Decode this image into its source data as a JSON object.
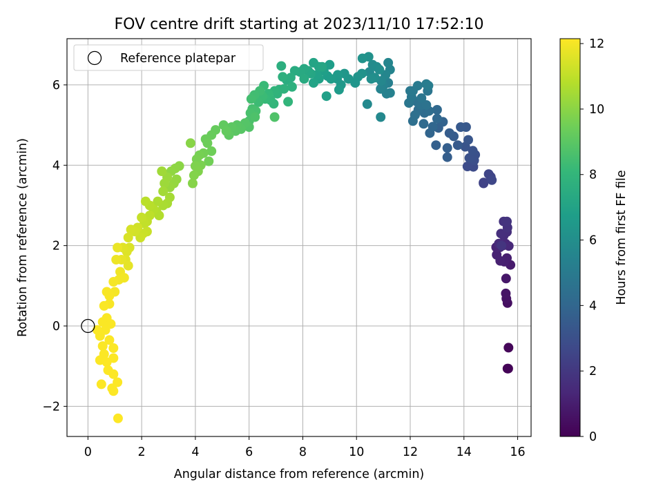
{
  "chart_data": {
    "type": "scatter",
    "title": "FOV centre drift starting at 2023/11/10 17:52:10",
    "xlabel": "Angular distance from reference (arcmin)",
    "ylabel": "Rotation from reference (arcmin)",
    "xlim": [
      -0.78,
      16.5
    ],
    "ylim": [
      -2.75,
      7.15
    ],
    "xticks": [
      0,
      2,
      4,
      6,
      8,
      10,
      12,
      14,
      16
    ],
    "yticks": [
      -2,
      0,
      2,
      4,
      6
    ],
    "xtick_labels": [
      "0",
      "2",
      "4",
      "6",
      "8",
      "10",
      "12",
      "14",
      "16"
    ],
    "ytick_labels": [
      "−2",
      "0",
      "2",
      "4",
      "6"
    ],
    "grid": true,
    "legend": {
      "position": "top-left",
      "entries": [
        {
          "label": "Reference platepar",
          "marker": "open-circle",
          "x": 0,
          "y": 0
        }
      ]
    },
    "colorbar": {
      "label": "Hours from first FF file",
      "colormap": "viridis",
      "range": [
        0,
        12.15
      ],
      "ticks": [
        0,
        2,
        4,
        6,
        8,
        10,
        12
      ],
      "tick_labels": [
        "0",
        "2",
        "4",
        "6",
        "8",
        "10",
        "12"
      ]
    },
    "series": [
      {
        "columns": [
          "x",
          "y",
          "hours"
        ],
        "points": [
          [
            15.62,
            -1.06,
            0.05
          ],
          [
            15.65,
            -1.06,
            0.1
          ],
          [
            15.66,
            -0.54,
            0.2
          ],
          [
            15.62,
            0.57,
            0.5
          ],
          [
            15.58,
            0.68,
            0.6
          ],
          [
            15.56,
            0.81,
            0.65
          ],
          [
            15.57,
            1.18,
            0.75
          ],
          [
            15.73,
            1.52,
            0.9
          ],
          [
            15.6,
            1.69,
            1.0
          ],
          [
            15.5,
            1.6,
            1.05
          ],
          [
            15.35,
            1.62,
            1.1
          ],
          [
            15.22,
            1.77,
            1.15
          ],
          [
            15.2,
            1.96,
            1.2
          ],
          [
            15.34,
            1.96,
            1.25
          ],
          [
            15.45,
            2.0,
            1.3
          ],
          [
            15.55,
            2.05,
            1.35
          ],
          [
            15.67,
            1.99,
            1.4
          ],
          [
            15.3,
            2.05,
            1.5
          ],
          [
            15.48,
            2.25,
            1.55
          ],
          [
            15.6,
            2.34,
            1.6
          ],
          [
            15.38,
            2.3,
            1.65
          ],
          [
            15.62,
            2.45,
            1.75
          ],
          [
            15.48,
            2.6,
            1.8
          ],
          [
            15.6,
            2.6,
            1.85
          ],
          [
            15.4,
            2.0,
            1.9
          ],
          [
            14.73,
            3.55,
            2.4
          ],
          [
            14.73,
            3.57,
            2.45
          ],
          [
            15.0,
            3.71,
            2.5
          ],
          [
            14.92,
            3.78,
            2.55
          ],
          [
            15.04,
            3.63,
            2.6
          ],
          [
            14.35,
            3.96,
            2.8
          ],
          [
            14.13,
            3.97,
            2.85
          ],
          [
            14.38,
            4.12,
            2.95
          ],
          [
            14.42,
            4.26,
            3.0
          ],
          [
            14.2,
            4.18,
            3.05
          ],
          [
            14.33,
            4.36,
            3.1
          ],
          [
            14.05,
            4.46,
            3.2
          ],
          [
            14.16,
            4.63,
            3.25
          ],
          [
            14.08,
            4.95,
            3.35
          ],
          [
            13.88,
            4.95,
            3.4
          ],
          [
            13.77,
            4.5,
            3.45
          ],
          [
            13.62,
            4.72,
            3.5
          ],
          [
            13.46,
            4.8,
            3.55
          ],
          [
            13.38,
            4.2,
            3.6
          ],
          [
            13.38,
            4.43,
            3.65
          ],
          [
            12.96,
            4.5,
            3.7
          ],
          [
            13.05,
            4.93,
            3.75
          ],
          [
            13.22,
            5.08,
            3.85
          ],
          [
            12.73,
            4.8,
            3.9
          ],
          [
            12.84,
            4.96,
            4.0
          ],
          [
            13.0,
            5.16,
            4.05
          ],
          [
            13.0,
            5.38,
            4.1
          ],
          [
            12.5,
            5.03,
            4.15
          ],
          [
            12.53,
            5.3,
            4.2
          ],
          [
            12.7,
            5.35,
            4.3
          ],
          [
            12.3,
            5.38,
            4.35
          ],
          [
            12.1,
            5.1,
            4.4
          ],
          [
            12.18,
            5.25,
            4.45
          ],
          [
            12.25,
            5.58,
            4.5
          ],
          [
            12.4,
            5.5,
            4.55
          ],
          [
            12.6,
            5.5,
            4.6
          ],
          [
            12.65,
            5.85,
            4.7
          ],
          [
            12.42,
            5.67,
            4.75
          ],
          [
            11.95,
            5.55,
            4.8
          ],
          [
            12.05,
            5.7,
            4.85
          ],
          [
            12.0,
            5.85,
            4.9
          ],
          [
            12.1,
            5.85,
            4.95
          ],
          [
            12.28,
            5.98,
            5.0
          ],
          [
            12.6,
            6.02,
            5.1
          ],
          [
            12.68,
            5.98,
            5.15
          ],
          [
            11.18,
            6.05,
            5.25
          ],
          [
            11.12,
            5.78,
            5.3
          ],
          [
            11.25,
            5.8,
            5.35
          ],
          [
            11.0,
            5.98,
            5.4
          ],
          [
            10.9,
            5.9,
            5.45
          ],
          [
            11.25,
            6.38,
            5.5
          ],
          [
            11.18,
            6.55,
            5.55
          ],
          [
            11.08,
            6.25,
            5.6
          ],
          [
            10.92,
            6.1,
            5.65
          ],
          [
            10.9,
            5.2,
            5.7
          ],
          [
            10.4,
            5.52,
            5.75
          ],
          [
            10.48,
            6.32,
            5.8
          ],
          [
            10.6,
            6.5,
            5.85
          ],
          [
            10.75,
            6.45,
            5.9
          ],
          [
            10.85,
            6.38,
            5.95
          ],
          [
            10.68,
            6.18,
            6.0
          ],
          [
            10.55,
            6.15,
            6.05
          ],
          [
            10.45,
            6.7,
            6.1
          ],
          [
            10.2,
            6.28,
            6.15
          ],
          [
            10.22,
            6.66,
            6.2
          ],
          [
            10.05,
            6.2,
            6.25
          ],
          [
            9.95,
            6.05,
            6.3
          ],
          [
            9.7,
            6.15,
            6.35
          ],
          [
            9.55,
            6.28,
            6.4
          ],
          [
            9.42,
            6.0,
            6.45
          ],
          [
            9.28,
            6.15,
            6.5
          ],
          [
            9.3,
            6.25,
            6.55
          ],
          [
            9.35,
            5.88,
            6.6
          ],
          [
            9.05,
            6.15,
            6.65
          ],
          [
            8.92,
            6.22,
            6.7
          ],
          [
            9.0,
            6.5,
            6.75
          ],
          [
            8.78,
            6.35,
            6.8
          ],
          [
            8.88,
            5.72,
            6.85
          ],
          [
            8.6,
            6.15,
            6.9
          ],
          [
            8.52,
            6.25,
            6.95
          ],
          [
            8.4,
            6.05,
            7.0
          ],
          [
            8.4,
            6.55,
            7.05
          ],
          [
            8.6,
            6.45,
            7.1
          ],
          [
            8.72,
            6.45,
            7.15
          ],
          [
            8.3,
            6.28,
            7.2
          ],
          [
            8.2,
            6.35,
            7.25
          ],
          [
            8.05,
            6.4,
            7.3
          ],
          [
            7.9,
            6.32,
            7.35
          ],
          [
            8.05,
            6.15,
            7.4
          ],
          [
            7.7,
            6.35,
            7.45
          ],
          [
            7.4,
            6.12,
            7.5
          ],
          [
            7.55,
            6.18,
            7.55
          ],
          [
            7.2,
            6.47,
            7.6
          ],
          [
            7.25,
            6.2,
            7.65
          ],
          [
            7.6,
            5.95,
            7.7
          ],
          [
            7.12,
            5.88,
            7.75
          ],
          [
            7.3,
            5.9,
            7.8
          ],
          [
            7.05,
            5.78,
            7.85
          ],
          [
            6.95,
            5.85,
            7.9
          ],
          [
            7.45,
            5.58,
            7.95
          ],
          [
            6.92,
            5.53,
            8.0
          ],
          [
            6.8,
            5.62,
            8.05
          ],
          [
            6.72,
            5.78,
            8.1
          ],
          [
            6.6,
            5.65,
            8.15
          ],
          [
            6.55,
            5.98,
            8.2
          ],
          [
            6.5,
            5.72,
            8.25
          ],
          [
            6.35,
            5.57,
            8.3
          ],
          [
            6.4,
            5.85,
            8.35
          ],
          [
            6.2,
            5.75,
            8.4
          ],
          [
            6.08,
            5.65,
            8.45
          ],
          [
            6.12,
            5.4,
            8.5
          ],
          [
            6.25,
            5.35,
            8.55
          ],
          [
            6.05,
            5.3,
            8.6
          ],
          [
            6.0,
            5.1,
            8.65
          ],
          [
            6.22,
            5.2,
            8.7
          ],
          [
            6.95,
            5.2,
            8.75
          ],
          [
            6.0,
            4.95,
            8.8
          ],
          [
            5.85,
            5.05,
            8.85
          ],
          [
            5.7,
            4.9,
            8.9
          ],
          [
            5.55,
            5.0,
            8.95
          ],
          [
            5.5,
            4.85,
            9.0
          ],
          [
            5.35,
            4.95,
            9.05
          ],
          [
            5.25,
            4.75,
            9.1
          ],
          [
            5.05,
            5.0,
            9.15
          ],
          [
            5.15,
            4.85,
            9.2
          ],
          [
            4.75,
            4.88,
            9.25
          ],
          [
            4.6,
            4.75,
            9.3
          ],
          [
            4.38,
            4.65,
            9.35
          ],
          [
            4.45,
            4.55,
            9.4
          ],
          [
            4.6,
            4.35,
            9.45
          ],
          [
            4.5,
            4.1,
            9.5
          ],
          [
            4.3,
            4.3,
            9.55
          ],
          [
            4.15,
            4.25,
            9.6
          ],
          [
            4.05,
            4.15,
            9.65
          ],
          [
            4.2,
            4.0,
            9.7
          ],
          [
            4.0,
            3.98,
            9.75
          ],
          [
            4.1,
            3.85,
            9.8
          ],
          [
            3.95,
            3.75,
            9.85
          ],
          [
            3.9,
            3.55,
            9.9
          ],
          [
            3.82,
            4.55,
            9.95
          ],
          [
            3.4,
            3.98,
            10.0
          ],
          [
            3.25,
            3.92,
            10.05
          ],
          [
            3.1,
            3.85,
            10.1
          ],
          [
            3.3,
            3.65,
            10.15
          ],
          [
            3.2,
            3.55,
            10.2
          ],
          [
            3.05,
            3.45,
            10.25
          ],
          [
            2.95,
            3.7,
            10.3
          ],
          [
            2.85,
            3.55,
            10.35
          ],
          [
            2.75,
            3.85,
            10.4
          ],
          [
            2.8,
            3.35,
            10.45
          ],
          [
            3.05,
            3.2,
            10.5
          ],
          [
            2.95,
            3.05,
            10.55
          ],
          [
            2.8,
            3.0,
            10.6
          ],
          [
            2.6,
            3.1,
            10.65
          ],
          [
            2.55,
            2.85,
            10.7
          ],
          [
            2.65,
            2.75,
            10.75
          ],
          [
            2.45,
            2.9,
            10.8
          ],
          [
            2.3,
            3.0,
            10.85
          ],
          [
            2.15,
            3.1,
            10.9
          ],
          [
            2.3,
            2.75,
            10.95
          ],
          [
            2.2,
            2.6,
            11.0
          ],
          [
            2.1,
            2.55,
            11.05
          ],
          [
            2.0,
            2.7,
            11.1
          ],
          [
            2.2,
            2.35,
            11.15
          ],
          [
            2.05,
            2.3,
            11.2
          ],
          [
            1.95,
            2.2,
            11.25
          ],
          [
            1.85,
            2.45,
            11.3
          ],
          [
            1.75,
            2.35,
            11.35
          ],
          [
            1.6,
            2.4,
            11.4
          ],
          [
            1.5,
            2.2,
            11.45
          ],
          [
            1.55,
            1.95,
            11.5
          ],
          [
            1.45,
            1.85,
            11.55
          ],
          [
            1.3,
            1.95,
            11.6
          ],
          [
            1.4,
            1.65,
            11.65
          ],
          [
            1.5,
            1.5,
            11.7
          ],
          [
            1.25,
            1.65,
            11.75
          ],
          [
            1.1,
            1.95,
            11.8
          ],
          [
            1.05,
            1.65,
            11.85
          ],
          [
            1.2,
            1.35,
            11.9
          ],
          [
            1.35,
            1.2,
            11.95
          ],
          [
            1.15,
            1.15,
            11.95
          ],
          [
            0.95,
            1.1,
            12.0
          ],
          [
            1.0,
            0.85,
            12.0
          ],
          [
            0.8,
            0.75,
            12.05
          ],
          [
            0.7,
            0.85,
            12.05
          ],
          [
            0.8,
            0.55,
            12.05
          ],
          [
            0.6,
            0.5,
            12.1
          ],
          [
            0.7,
            0.2,
            12.1
          ],
          [
            0.55,
            0.1,
            12.1
          ],
          [
            0.85,
            0.05,
            12.1
          ],
          [
            0.65,
            -0.1,
            12.1
          ],
          [
            0.45,
            -0.25,
            12.1
          ],
          [
            0.35,
            -0.1,
            12.12
          ],
          [
            0.8,
            -0.35,
            12.12
          ],
          [
            0.55,
            -0.5,
            12.12
          ],
          [
            0.95,
            -0.55,
            12.12
          ],
          [
            0.6,
            -0.7,
            12.12
          ],
          [
            0.45,
            -0.85,
            12.12
          ],
          [
            0.7,
            -0.9,
            12.13
          ],
          [
            0.95,
            -0.8,
            12.13
          ],
          [
            0.75,
            -1.1,
            12.13
          ],
          [
            0.95,
            -1.2,
            12.13
          ],
          [
            1.1,
            -1.4,
            12.13
          ],
          [
            0.5,
            -1.45,
            12.13
          ],
          [
            0.9,
            -1.55,
            12.14
          ],
          [
            0.95,
            -1.62,
            12.14
          ],
          [
            1.12,
            -2.3,
            12.15
          ]
        ]
      }
    ]
  }
}
